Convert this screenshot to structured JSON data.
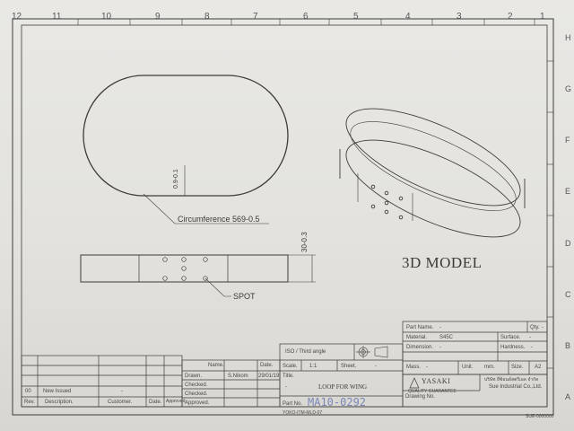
{
  "zones": {
    "columns": [
      "12",
      "11",
      "10",
      "9",
      "8",
      "7",
      "6",
      "5",
      "4",
      "3",
      "2",
      "1"
    ],
    "rows": [
      "H",
      "G",
      "F",
      "E",
      "D",
      "C",
      "B",
      "A"
    ]
  },
  "drawing": {
    "front_thickness": "0.9-0.1",
    "circumference": "Circumference 569-0.5",
    "height": "30-0.3",
    "spot": "SPOT",
    "model_label": "3D MODEL"
  },
  "title_block": {
    "part_name_label": "Part Name.",
    "part_name_value": "-",
    "qty_label": "Qty.",
    "qty_value": "-",
    "material_label": "Material.",
    "material_value": "S45C",
    "surface_label": "Surface.",
    "surface_value": "-",
    "dimension_label": "Dimension.",
    "dimension_value": "-",
    "hardness_label": "Hardness.",
    "hardness_value": "-",
    "mass_label": "Mass.",
    "mass_value": "-",
    "unit_label": "Unit.",
    "unit_value": "mm.",
    "size_label": "Size.",
    "size_value": "A2",
    "projection": "ISO / Third angle",
    "scale_label": "Scale.",
    "scale_value": "1:1",
    "sheet_label": "Sheet.",
    "sheet_value": "-",
    "title_label": "Title.",
    "title_dash": "-",
    "title_value": "LOOP FOR WING",
    "part_no_label": "Part No.",
    "part_no_value": "MA10-0292",
    "drawing_no_label": "Drawing No.",
    "company_logo": "YASAKI",
    "company_tagline": "QUALITY GUARANTEE",
    "company_thai": "บริษัท ยี่ซ้อนด์สตรีเอล จำกัด",
    "company_en": "Sue Industrial Co.,Ltd.",
    "form_code": "YOKO-ITM-MLD-07",
    "doc_code": "SUE-0000000"
  },
  "approval": {
    "name_header": "Name.",
    "date_header": "Date.",
    "drawn_label": "Drawn.",
    "drawn_name": "S.Nikom",
    "drawn_date": "29/01/19",
    "checked1_label": "Checked.",
    "checked2_label": "Checked.",
    "approved_label": "Approved."
  },
  "revisions": {
    "headers": [
      "Rev.",
      "Description.",
      "Customer.",
      "Date.",
      "Approved."
    ],
    "rows": [
      {
        "rev": "00",
        "description": "New Issued",
        "customer": "-"
      }
    ]
  }
}
